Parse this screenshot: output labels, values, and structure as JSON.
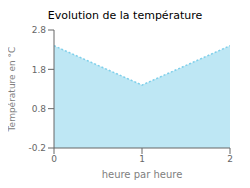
{
  "chart_data": {
    "type": "area",
    "title": "Evolution de la température",
    "xlabel": "heure par heure",
    "ylabel": "Température en °C",
    "x": [
      0,
      1,
      2
    ],
    "values": [
      2.4,
      1.4,
      2.4
    ],
    "xlim": [
      0,
      2
    ],
    "xticks": [
      0,
      1,
      2
    ],
    "ylim": [
      -0.2,
      2.8
    ],
    "yticks": [
      -0.2,
      0.8,
      1.8,
      2.8
    ],
    "color": "#7ecfea",
    "line_style": "dotted",
    "grid": false
  }
}
